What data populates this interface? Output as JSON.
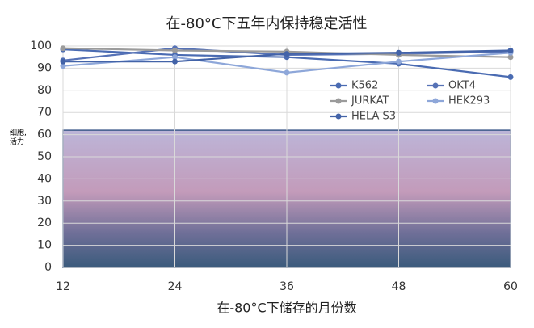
{
  "chart_data": {
    "type": "line",
    "title": "在-80°C下五年内保持稳定活性",
    "x_label": "在-80°C下储存的月份数",
    "y_label": "细胞,活力",
    "x": [
      12,
      24,
      36,
      48,
      60
    ],
    "xlim": [
      12,
      60
    ],
    "xticks": [
      12,
      24,
      36,
      48,
      60
    ],
    "ylim": [
      0,
      100
    ],
    "yticks": [
      0,
      10,
      20,
      30,
      40,
      50,
      60,
      70,
      80,
      90,
      100
    ],
    "grid": true,
    "shaded_region": [
      0,
      62
    ],
    "series": [
      {
        "name": "K562",
        "color": "#4a6bb2",
        "values": [
          98.5,
          96,
          95,
          92,
          86
        ]
      },
      {
        "name": "OKT4",
        "color": "#5672b6",
        "values": [
          93.5,
          99,
          96,
          96.5,
          97.5
        ]
      },
      {
        "name": "JURKAT",
        "color": "#9b9b9b",
        "values": [
          99,
          98,
          97.5,
          96,
          95
        ]
      },
      {
        "name": "HEK293",
        "color": "#8ea7d9",
        "values": [
          91,
          95,
          88,
          93,
          97
        ]
      },
      {
        "name": "HELA S3",
        "color": "#4363a8",
        "values": [
          93,
          93,
          96.5,
          97,
          98
        ]
      }
    ]
  }
}
